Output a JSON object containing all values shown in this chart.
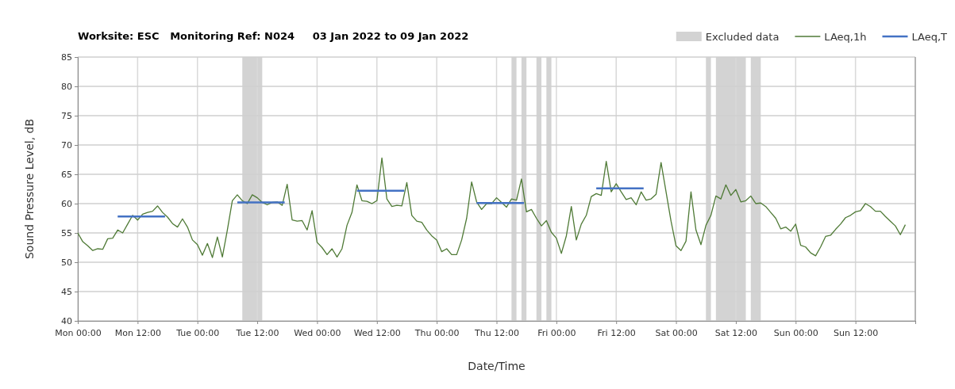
{
  "chart_data": {
    "type": "line",
    "title": "Worksite: ESC   Monitoring Ref: N024     03 Jan 2022 to 09 Jan 2022",
    "xlabel": "Date/Time",
    "ylabel": "Sound Pressure Level, dB",
    "xlim": [
      "2022-01-03T00:00",
      "2022-01-10T00:00"
    ],
    "ylim": [
      40,
      85
    ],
    "xticks": [
      {
        "value": "2022-01-03T00:00",
        "label": "Mon 00:00"
      },
      {
        "value": "2022-01-03T12:00",
        "label": "Mon 12:00"
      },
      {
        "value": "2022-01-04T00:00",
        "label": "Tue 00:00"
      },
      {
        "value": "2022-01-04T12:00",
        "label": "Tue 12:00"
      },
      {
        "value": "2022-01-05T00:00",
        "label": "Wed 00:00"
      },
      {
        "value": "2022-01-05T12:00",
        "label": "Wed 12:00"
      },
      {
        "value": "2022-01-06T00:00",
        "label": "Thu 00:00"
      },
      {
        "value": "2022-01-06T12:00",
        "label": "Thu 12:00"
      },
      {
        "value": "2022-01-07T00:00",
        "label": "Fri 00:00"
      },
      {
        "value": "2022-01-07T12:00",
        "label": "Fri 12:00"
      },
      {
        "value": "2022-01-08T00:00",
        "label": "Sat 00:00"
      },
      {
        "value": "2022-01-08T12:00",
        "label": "Sat 12:00"
      },
      {
        "value": "2022-01-09T00:00",
        "label": "Sun 00:00"
      },
      {
        "value": "2022-01-09T12:00",
        "label": "Sun 12:00"
      },
      {
        "value": "2022-01-10T00:00",
        "label": null
      }
    ],
    "yticks": [
      40,
      45,
      50,
      55,
      60,
      65,
      70,
      75,
      80,
      85
    ],
    "grid": true,
    "legend": "top right",
    "marker": "none",
    "line_style": "solid",
    "bands": [
      {
        "axis": "x",
        "from": "2022-01-04T09:00",
        "to": "2022-01-04T13:00",
        "label": "Excluded data",
        "color": "#d3d3d3"
      },
      {
        "axis": "x",
        "from": "2022-01-06T15:00",
        "to": "2022-01-06T16:00",
        "color": "#d3d3d3"
      },
      {
        "axis": "x",
        "from": "2022-01-06T17:00",
        "to": "2022-01-06T18:00",
        "color": "#d3d3d3"
      },
      {
        "axis": "x",
        "from": "2022-01-06T20:00",
        "to": "2022-01-06T21:00",
        "color": "#d3d3d3"
      },
      {
        "axis": "x",
        "from": "2022-01-06T22:00",
        "to": "2022-01-06T23:00",
        "color": "#d3d3d3"
      },
      {
        "axis": "x",
        "from": "2022-01-08T06:00",
        "to": "2022-01-08T07:00",
        "color": "#d3d3d3"
      },
      {
        "axis": "x",
        "from": "2022-01-08T08:00",
        "to": "2022-01-08T14:00",
        "color": "#d3d3d3"
      },
      {
        "axis": "x",
        "from": "2022-01-08T15:00",
        "to": "2022-01-08T17:00",
        "color": "#d3d3d3"
      }
    ],
    "series": [
      {
        "name": "LAeq,1h",
        "color": "#4f7a36",
        "x": [
          "2022-01-03T00:00",
          "2022-01-03T01:00",
          "2022-01-03T02:00",
          "2022-01-03T03:00",
          "2022-01-03T04:00",
          "2022-01-03T05:00",
          "2022-01-03T06:00",
          "2022-01-03T07:00",
          "2022-01-03T08:00",
          "2022-01-03T09:00",
          "2022-01-03T10:00",
          "2022-01-03T11:00",
          "2022-01-03T12:00",
          "2022-01-03T13:00",
          "2022-01-03T14:00",
          "2022-01-03T15:00",
          "2022-01-03T16:00",
          "2022-01-03T17:00",
          "2022-01-03T18:00",
          "2022-01-03T19:00",
          "2022-01-03T20:00",
          "2022-01-03T21:00",
          "2022-01-03T22:00",
          "2022-01-03T23:00",
          "2022-01-04T00:00",
          "2022-01-04T01:00",
          "2022-01-04T02:00",
          "2022-01-04T03:00",
          "2022-01-04T04:00",
          "2022-01-04T05:00",
          "2022-01-04T06:00",
          "2022-01-04T07:00",
          "2022-01-04T08:00",
          "2022-01-04T09:00",
          "2022-01-04T10:00",
          "2022-01-04T11:00",
          "2022-01-04T12:00",
          "2022-01-04T13:00",
          "2022-01-04T14:00",
          "2022-01-04T15:00",
          "2022-01-04T16:00",
          "2022-01-04T17:00",
          "2022-01-04T18:00",
          "2022-01-04T19:00",
          "2022-01-04T20:00",
          "2022-01-04T21:00",
          "2022-01-04T22:00",
          "2022-01-04T23:00",
          "2022-01-05T00:00",
          "2022-01-05T01:00",
          "2022-01-05T02:00",
          "2022-01-05T03:00",
          "2022-01-05T04:00",
          "2022-01-05T05:00",
          "2022-01-05T06:00",
          "2022-01-05T07:00",
          "2022-01-05T08:00",
          "2022-01-05T09:00",
          "2022-01-05T10:00",
          "2022-01-05T11:00",
          "2022-01-05T12:00",
          "2022-01-05T13:00",
          "2022-01-05T14:00",
          "2022-01-05T15:00",
          "2022-01-05T16:00",
          "2022-01-05T17:00",
          "2022-01-05T18:00",
          "2022-01-05T19:00",
          "2022-01-05T20:00",
          "2022-01-05T21:00",
          "2022-01-05T22:00",
          "2022-01-05T23:00",
          "2022-01-06T00:00",
          "2022-01-06T01:00",
          "2022-01-06T02:00",
          "2022-01-06T03:00",
          "2022-01-06T04:00",
          "2022-01-06T05:00",
          "2022-01-06T06:00",
          "2022-01-06T07:00",
          "2022-01-06T08:00",
          "2022-01-06T09:00",
          "2022-01-06T10:00",
          "2022-01-06T11:00",
          "2022-01-06T12:00",
          "2022-01-06T13:00",
          "2022-01-06T14:00",
          "2022-01-06T15:00",
          "2022-01-06T16:00",
          "2022-01-06T17:00",
          "2022-01-06T18:00",
          "2022-01-06T19:00",
          "2022-01-06T20:00",
          "2022-01-06T21:00",
          "2022-01-06T22:00",
          "2022-01-06T23:00",
          "2022-01-07T00:00",
          "2022-01-07T01:00",
          "2022-01-07T02:00",
          "2022-01-07T03:00",
          "2022-01-07T04:00",
          "2022-01-07T05:00",
          "2022-01-07T06:00",
          "2022-01-07T07:00",
          "2022-01-07T08:00",
          "2022-01-07T09:00",
          "2022-01-07T10:00",
          "2022-01-07T11:00",
          "2022-01-07T12:00",
          "2022-01-07T13:00",
          "2022-01-07T14:00",
          "2022-01-07T15:00",
          "2022-01-07T16:00",
          "2022-01-07T17:00",
          "2022-01-07T18:00",
          "2022-01-07T19:00",
          "2022-01-07T20:00",
          "2022-01-07T21:00",
          "2022-01-07T22:00",
          "2022-01-07T23:00",
          "2022-01-08T00:00",
          "2022-01-08T01:00",
          "2022-01-08T02:00",
          "2022-01-08T03:00",
          "2022-01-08T04:00",
          "2022-01-08T05:00",
          "2022-01-08T06:00",
          "2022-01-08T07:00",
          "2022-01-08T08:00",
          "2022-01-08T09:00",
          "2022-01-08T10:00",
          "2022-01-08T11:00",
          "2022-01-08T12:00",
          "2022-01-08T13:00",
          "2022-01-08T14:00",
          "2022-01-08T15:00",
          "2022-01-08T16:00",
          "2022-01-08T17:00",
          "2022-01-08T18:00",
          "2022-01-08T19:00",
          "2022-01-08T20:00",
          "2022-01-08T21:00",
          "2022-01-08T22:00",
          "2022-01-08T23:00",
          "2022-01-09T00:00",
          "2022-01-09T01:00",
          "2022-01-09T02:00",
          "2022-01-09T03:00",
          "2022-01-09T04:00",
          "2022-01-09T05:00",
          "2022-01-09T06:00",
          "2022-01-09T07:00",
          "2022-01-09T08:00",
          "2022-01-09T09:00",
          "2022-01-09T10:00",
          "2022-01-09T11:00",
          "2022-01-09T12:00",
          "2022-01-09T13:00",
          "2022-01-09T14:00",
          "2022-01-09T15:00",
          "2022-01-09T16:00",
          "2022-01-09T17:00",
          "2022-01-09T18:00",
          "2022-01-09T19:00",
          "2022-01-09T20:00",
          "2022-01-09T21:00",
          "2022-01-09T22:00"
        ],
        "values": [
          55,
          53.5,
          52.8,
          52,
          52.3,
          52.2,
          54,
          54.1,
          55.5,
          55,
          56.5,
          58,
          57.2,
          58.2,
          58.5,
          58.7,
          59.6,
          58.5,
          57.7,
          56.6,
          56,
          57.4,
          56,
          53.8,
          53,
          51.2,
          53.2,
          50.8,
          54.3,
          50.9,
          55.5,
          60.5,
          61.5,
          60.5,
          60,
          61.5,
          61,
          60.2,
          59.8,
          60.2,
          60.3,
          59.7,
          63.3,
          57.2,
          57,
          57.1,
          55.5,
          58.8,
          53.4,
          52.5,
          51.3,
          52.3,
          50.9,
          52.3,
          56.3,
          58.5,
          63.2,
          60.5,
          60.4,
          60,
          60.5,
          67.8,
          60.8,
          59.5,
          59.7,
          59.6,
          63.6,
          58,
          57,
          56.8,
          55.5,
          54.5,
          53.8,
          51.8,
          52.3,
          51.3,
          51.3,
          53.8,
          57.5,
          63.7,
          60.3,
          59,
          60,
          60,
          61,
          60.2,
          59.4,
          60.8,
          60.6,
          64.2,
          58.6,
          59,
          57.5,
          56.2,
          57.1,
          55.1,
          54.1,
          51.5,
          54.5,
          59.5,
          53.8,
          56.5,
          58,
          61.2,
          61.7,
          61.4,
          67.2,
          62,
          63.4,
          62,
          60.7,
          61,
          59.8,
          62,
          60.6,
          60.8,
          61.6,
          67,
          62,
          57,
          52.8,
          52,
          53.6,
          62,
          55.5,
          53,
          56.3,
          58,
          61.3,
          60.8,
          63.2,
          61.4,
          62.4,
          60.3,
          60.5,
          61.3,
          60,
          60.1,
          59.5,
          58.5,
          57.5,
          55.7,
          56,
          55.3,
          56.5,
          52.9,
          52.6,
          51.6,
          51.1,
          52.6,
          54.4,
          54.6,
          55.6,
          56.5,
          57.6,
          58,
          58.6,
          58.8,
          60,
          59.5,
          58.7,
          58.7,
          57.8,
          57,
          56.2,
          54.7,
          56.4
        ]
      },
      {
        "name": "LAeq,T",
        "color": "#4472c4",
        "x": [
          "2022-01-03T08:00",
          "2022-01-03T17:30",
          "2022-01-04T01:00",
          "2022-01-04T08:00",
          "2022-01-04T17:30",
          "2022-01-05T01:00",
          "2022-01-05T08:00",
          "2022-01-05T17:30",
          "2022-01-06T01:00",
          "2022-01-06T08:00",
          "2022-01-06T17:30",
          "2022-01-07T01:00",
          "2022-01-07T08:00",
          "2022-01-07T17:30"
        ],
        "values": [
          57.8,
          57.8,
          null,
          60.2,
          60.2,
          null,
          62.2,
          62.2,
          null,
          60.1,
          60.1,
          null,
          62.6,
          62.6
        ]
      }
    ]
  }
}
